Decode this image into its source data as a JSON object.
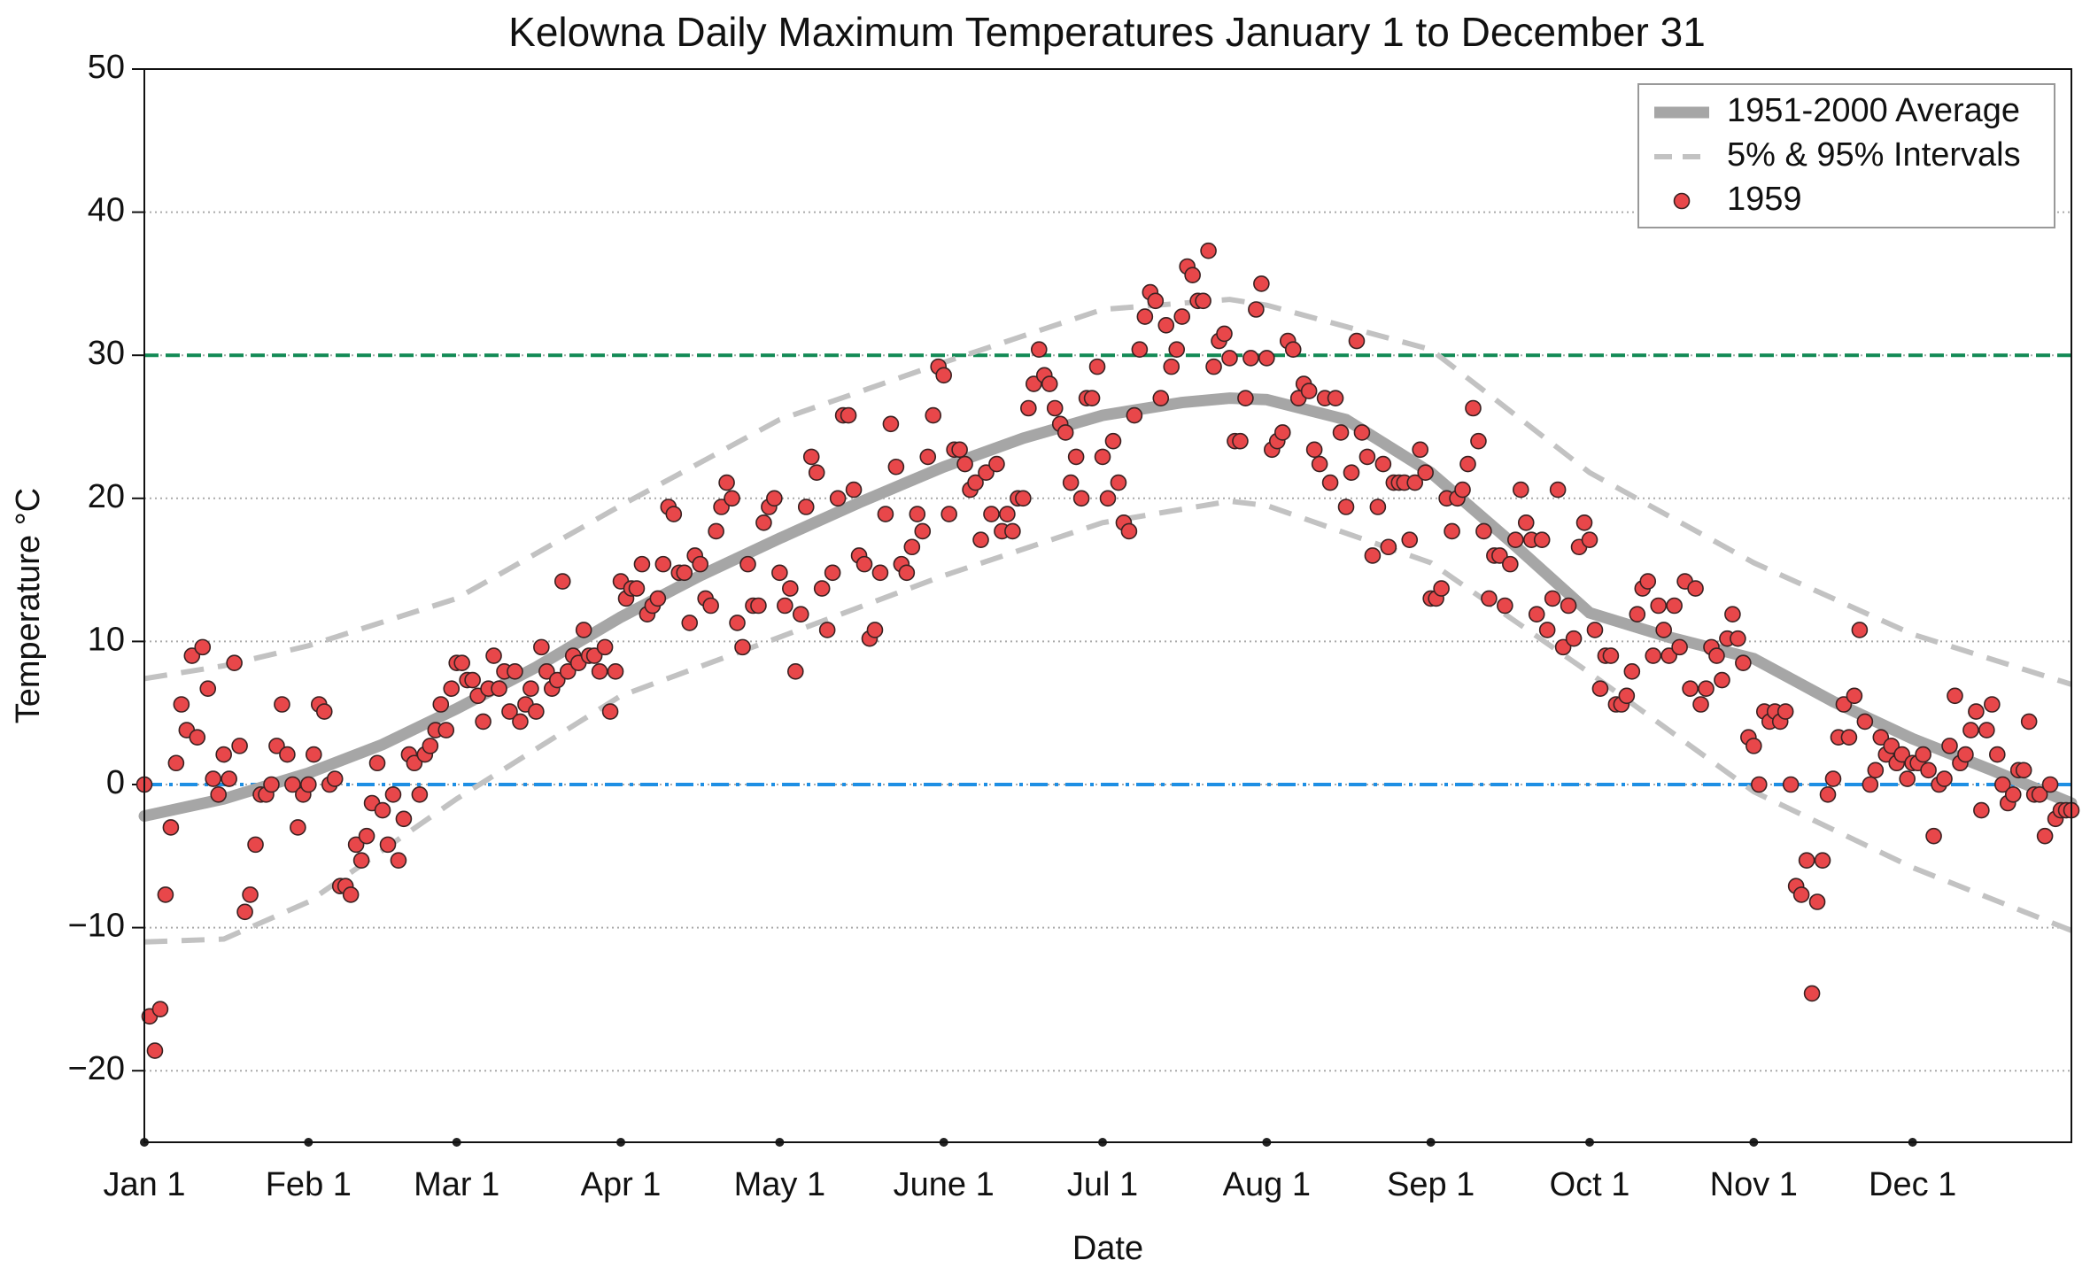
{
  "chart_data": {
    "type": "scatter",
    "title": "Kelowna Daily Maximum Temperatures January 1 to December 31",
    "x_label": "Date",
    "y_label": "Temperature °C",
    "xlim": [
      1,
      365
    ],
    "ylim": [
      -25,
      50
    ],
    "xticks": [
      {
        "value": 1,
        "label": "Jan 1"
      },
      {
        "value": 32,
        "label": "Feb 1"
      },
      {
        "value": 60,
        "label": "Mar 1"
      },
      {
        "value": 91,
        "label": "Apr 1"
      },
      {
        "value": 121,
        "label": "May 1"
      },
      {
        "value": 152,
        "label": "June 1"
      },
      {
        "value": 182,
        "label": "Jul 1"
      },
      {
        "value": 213,
        "label": "Aug 1"
      },
      {
        "value": 244,
        "label": "Sep 1"
      },
      {
        "value": 274,
        "label": "Oct 1"
      },
      {
        "value": 305,
        "label": "Nov 1"
      },
      {
        "value": 335,
        "label": "Dec 1"
      }
    ],
    "yticks": [
      {
        "value": -20,
        "label": "−20"
      },
      {
        "value": -10,
        "label": "−10"
      },
      0,
      10,
      20,
      30,
      40,
      50
    ],
    "grid": true,
    "legend": "upper right",
    "hlines": [
      {
        "value": 30,
        "color": "#128a55"
      },
      {
        "value": 0,
        "color": "#1e8fe4"
      }
    ],
    "average": {
      "name": "1951-2000 Average",
      "color": "#a6a6a6",
      "x": [
        1,
        16,
        32,
        46,
        60,
        75,
        91,
        106,
        121,
        136,
        152,
        167,
        182,
        197,
        206,
        213,
        228,
        244,
        259,
        274,
        289,
        305,
        320,
        335,
        350,
        365
      ],
      "values": [
        -2.2,
        -1,
        0.8,
        2.8,
        5.3,
        8.2,
        11.7,
        14.6,
        17.2,
        19.7,
        22.2,
        24.2,
        25.8,
        26.7,
        27,
        26.9,
        25.5,
        21.8,
        17,
        12,
        10.3,
        8.8,
        5.8,
        3.2,
        1,
        -1.3
      ]
    },
    "intervals": {
      "name": "5% & 95% Intervals",
      "color": "#c2c2c2",
      "x": [
        1,
        16,
        32,
        60,
        91,
        121,
        152,
        182,
        206,
        213,
        244,
        274,
        305,
        335,
        365
      ],
      "upper": [
        7.4,
        8.3,
        9.7,
        13,
        19.5,
        25.5,
        29.5,
        33.2,
        33.9,
        33.5,
        30.4,
        21.8,
        15.5,
        10.5,
        7
      ],
      "lower": [
        -11,
        -10.8,
        -8.2,
        -1,
        6.2,
        10.3,
        14.6,
        18.3,
        19.8,
        19.5,
        15.5,
        7.8,
        -0.5,
        -5.8,
        -10.2
      ]
    },
    "x": [
      1,
      2,
      3,
      4,
      5,
      6,
      7,
      8,
      9,
      10,
      11,
      12,
      13,
      14,
      15,
      16,
      17,
      18,
      19,
      20,
      21,
      22,
      23,
      24,
      25,
      26,
      27,
      28,
      29,
      30,
      31,
      32,
      33,
      34,
      35,
      36,
      37,
      38,
      39,
      40,
      41,
      42,
      43,
      44,
      45,
      46,
      47,
      48,
      49,
      50,
      51,
      52,
      53,
      54,
      55,
      56,
      57,
      58,
      59,
      60,
      61,
      62,
      63,
      64,
      65,
      66,
      67,
      68,
      69,
      70,
      71,
      72,
      73,
      74,
      75,
      76,
      77,
      78,
      79,
      80,
      81,
      82,
      83,
      84,
      85,
      86,
      87,
      88,
      89,
      90,
      91,
      92,
      93,
      94,
      95,
      96,
      97,
      98,
      99,
      100,
      101,
      102,
      103,
      104,
      105,
      106,
      107,
      108,
      109,
      110,
      111,
      112,
      113,
      114,
      115,
      116,
      117,
      118,
      119,
      120,
      121,
      122,
      123,
      124,
      125,
      126,
      127,
      128,
      129,
      130,
      131,
      132,
      133,
      134,
      135,
      136,
      137,
      138,
      139,
      140,
      141,
      142,
      143,
      144,
      145,
      146,
      147,
      148,
      149,
      150,
      151,
      152,
      153,
      154,
      155,
      156,
      157,
      158,
      159,
      160,
      161,
      162,
      163,
      164,
      165,
      166,
      167,
      168,
      169,
      170,
      171,
      172,
      173,
      174,
      175,
      176,
      177,
      178,
      179,
      180,
      181,
      182,
      183,
      184,
      185,
      186,
      187,
      188,
      189,
      190,
      191,
      192,
      193,
      194,
      195,
      196,
      197,
      198,
      199,
      200,
      201,
      202,
      203,
      204,
      205,
      206,
      207,
      208,
      209,
      210,
      211,
      212,
      213,
      214,
      215,
      216,
      217,
      218,
      219,
      220,
      221,
      222,
      223,
      224,
      225,
      226,
      227,
      228,
      229,
      230,
      231,
      232,
      233,
      234,
      235,
      236,
      237,
      238,
      239,
      240,
      241,
      242,
      243,
      244,
      245,
      246,
      247,
      248,
      249,
      250,
      251,
      252,
      253,
      254,
      255,
      256,
      257,
      258,
      259,
      260,
      261,
      262,
      263,
      264,
      265,
      266,
      267,
      268,
      269,
      270,
      271,
      272,
      273,
      274,
      275,
      276,
      277,
      278,
      279,
      280,
      281,
      282,
      283,
      284,
      285,
      286,
      287,
      288,
      289,
      290,
      291,
      292,
      293,
      294,
      295,
      296,
      297,
      298,
      299,
      300,
      301,
      302,
      303,
      304,
      305,
      306,
      307,
      308,
      309,
      310,
      311,
      312,
      313,
      314,
      315,
      316,
      317,
      318,
      319,
      320,
      321,
      322,
      323,
      324,
      325,
      326,
      327,
      328,
      329,
      330,
      331,
      332,
      333,
      334,
      335,
      336,
      337,
      338,
      339,
      340,
      341,
      342,
      343,
      344,
      345,
      346,
      347,
      348,
      349,
      350,
      351,
      352,
      353,
      354,
      355,
      356,
      357,
      358,
      359,
      360,
      361,
      362,
      363,
      364,
      365
    ],
    "series": [
      {
        "name": "1959",
        "color": "#e8474a",
        "values": [
          0,
          -16.2,
          -18.6,
          -15.7,
          -7.7,
          -3,
          1.5,
          5.6,
          3.8,
          9,
          3.3,
          9.6,
          6.7,
          0.4,
          -0.7,
          2.1,
          0.4,
          8.5,
          2.7,
          -8.9,
          -7.7,
          -4.2,
          -0.7,
          -0.7,
          0,
          2.7,
          5.6,
          2.1,
          0,
          -3,
          -0.7,
          0,
          2.1,
          5.6,
          5.1,
          0,
          0.4,
          -7.1,
          -7.1,
          -7.7,
          -4.2,
          -5.3,
          -3.6,
          -1.3,
          1.5,
          -1.8,
          -4.2,
          -0.7,
          -5.3,
          -2.4,
          2.1,
          1.5,
          -0.7,
          2.1,
          2.7,
          3.8,
          5.6,
          3.8,
          6.7,
          8.5,
          8.5,
          7.3,
          7.3,
          6.2,
          4.4,
          6.7,
          9,
          6.7,
          7.9,
          5.1,
          7.9,
          4.4,
          5.6,
          6.7,
          5.1,
          9.6,
          7.9,
          6.7,
          7.3,
          14.2,
          7.9,
          9,
          8.5,
          10.8,
          9,
          9,
          7.9,
          9.6,
          5.1,
          7.9,
          14.2,
          13,
          13.7,
          13.7,
          15.4,
          11.9,
          12.5,
          13,
          15.4,
          19.4,
          18.9,
          14.8,
          14.8,
          11.3,
          16,
          15.4,
          13,
          12.5,
          17.7,
          19.4,
          21.1,
          20,
          11.3,
          9.6,
          15.4,
          12.5,
          12.5,
          18.3,
          19.4,
          20,
          14.8,
          12.5,
          13.7,
          7.9,
          11.9,
          19.4,
          22.9,
          21.8,
          13.7,
          10.8,
          14.8,
          20,
          25.8,
          25.8,
          20.6,
          16,
          15.4,
          10.2,
          10.8,
          14.8,
          18.9,
          25.2,
          22.2,
          15.4,
          14.8,
          16.6,
          18.9,
          17.7,
          22.9,
          25.8,
          29.2,
          28.6,
          18.9,
          23.4,
          23.4,
          22.4,
          20.6,
          21.1,
          17.1,
          21.8,
          18.9,
          22.4,
          17.7,
          18.9,
          17.7,
          20,
          20,
          26.3,
          28,
          30.4,
          28.6,
          28,
          26.3,
          25.2,
          24.6,
          21.1,
          22.9,
          20,
          27,
          27,
          29.2,
          22.9,
          20,
          24,
          21.1,
          18.3,
          17.7,
          25.8,
          30.4,
          32.7,
          34.4,
          33.8,
          27,
          32.1,
          29.2,
          30.4,
          32.7,
          36.2,
          35.6,
          33.8,
          33.8,
          37.3,
          29.2,
          31,
          31.5,
          29.8,
          24,
          24,
          27,
          29.8,
          33.2,
          35,
          29.8,
          23.4,
          24,
          24.6,
          31,
          30.4,
          27,
          28,
          27.5,
          23.4,
          22.4,
          27,
          21.1,
          27,
          24.6,
          19.4,
          21.8,
          31,
          24.6,
          22.9,
          16,
          19.4,
          22.4,
          16.6,
          21.1,
          21.1,
          21.1,
          17.1,
          21.1,
          23.4,
          21.8,
          13,
          13,
          13.7,
          20,
          17.7,
          20,
          20.6,
          22.4,
          26.3,
          24,
          17.7,
          13,
          16,
          16,
          12.5,
          15.4,
          17.1,
          20.6,
          18.3,
          17.1,
          11.9,
          17.1,
          10.8,
          13,
          20.6,
          9.6,
          12.5,
          10.2,
          16.6,
          18.3,
          17.1,
          10.8,
          6.7,
          9,
          9,
          5.6,
          5.6,
          6.2,
          7.9,
          11.9,
          13.7,
          14.2,
          9,
          12.5,
          10.8,
          9,
          12.5,
          9.6,
          14.2,
          6.7,
          13.7,
          5.6,
          6.7,
          9.6,
          9,
          7.3,
          10.2,
          11.9,
          10.2,
          8.5,
          3.3,
          2.7,
          0,
          5.1,
          4.4,
          5.1,
          4.4,
          5.1,
          0,
          -7.1,
          -7.7,
          -5.3,
          -14.6,
          -8.2,
          -5.3,
          -0.7,
          0.4,
          3.3,
          5.6,
          3.3,
          6.2,
          10.8,
          4.4,
          0,
          1,
          3.3,
          2.1,
          2.7,
          1.5,
          2.1,
          0.4,
          1.5,
          1.5,
          2.1,
          1,
          -3.6,
          0,
          0.4,
          2.7,
          6.2,
          1.5,
          2.1,
          3.8,
          5.1,
          -1.8,
          3.8,
          5.6,
          2.1,
          0,
          -1.3,
          -0.7,
          1,
          1,
          4.4,
          -0.7,
          -0.7,
          -3.6,
          0,
          -2.4,
          -1.8,
          -1.8,
          -1.8
        ]
      }
    ]
  }
}
